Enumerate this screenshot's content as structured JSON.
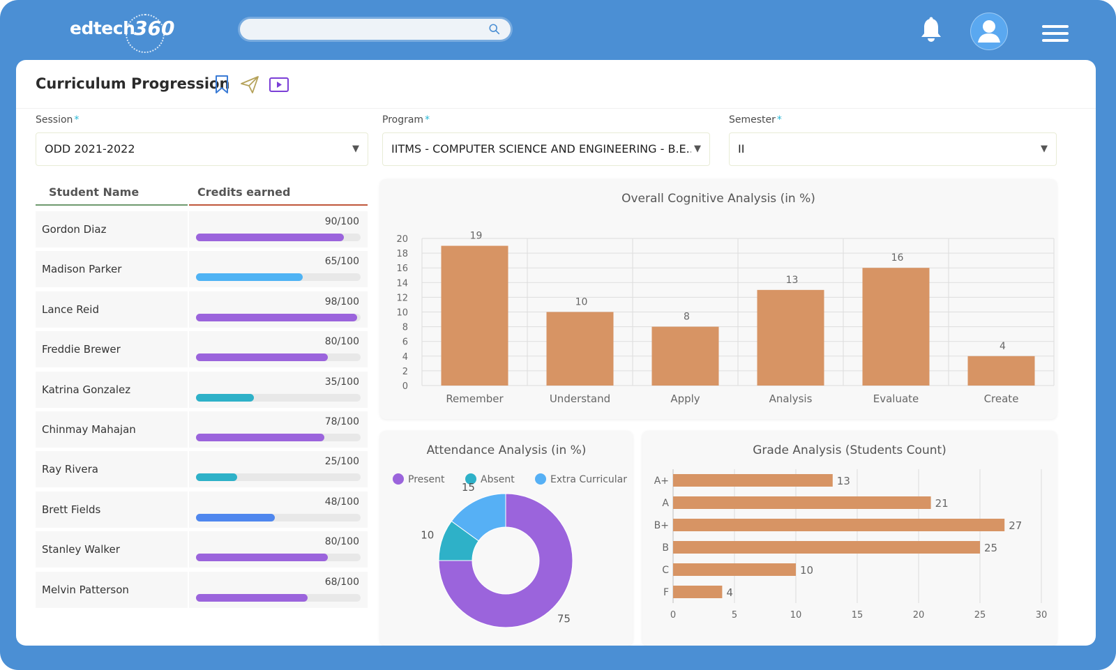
{
  "header": {
    "logo_text": "edtech",
    "logo_number": "360",
    "search": {
      "placeholder": ""
    }
  },
  "page": {
    "title": "Curriculum Progression"
  },
  "filters": {
    "session": {
      "label": "Session",
      "required_mark": "*",
      "value": "ODD 2021-2022"
    },
    "program": {
      "label": "Program",
      "required_mark": "*",
      "value": "IITMS - COMPUTER SCIENCE AND ENGINEERING - B.E....."
    },
    "semester": {
      "label": "Semester",
      "required_mark": "*",
      "value": "II"
    }
  },
  "students": {
    "col_name": "Student Name",
    "col_credits": "Credits earned",
    "rows": [
      {
        "name": "Gordon Diaz",
        "score": "90/100",
        "progress": 0.9,
        "color": "#9b64dc"
      },
      {
        "name": "Madison Parker",
        "score": "65/100",
        "progress": 0.65,
        "color": "#4fb3f4"
      },
      {
        "name": "Lance Reid",
        "score": "98/100",
        "progress": 0.98,
        "color": "#9b64dc"
      },
      {
        "name": "Freddie Brewer",
        "score": "80/100",
        "progress": 0.8,
        "color": "#9b64dc"
      },
      {
        "name": "Katrina Gonzalez",
        "score": "35/100",
        "progress": 0.35,
        "color": "#2eb1c8"
      },
      {
        "name": "Chinmay Mahajan",
        "score": "78/100",
        "progress": 0.78,
        "color": "#9b64dc"
      },
      {
        "name": "Ray Rivera",
        "score": "25/100",
        "progress": 0.25,
        "color": "#2eb1c8"
      },
      {
        "name": "Brett Fields",
        "score": "48/100",
        "progress": 0.48,
        "color": "#4f87ee"
      },
      {
        "name": "Stanley Walker",
        "score": "80/100",
        "progress": 0.8,
        "color": "#9b64dc"
      },
      {
        "name": "Melvin Patterson",
        "score": "68/100",
        "progress": 0.68,
        "color": "#9b64dc"
      }
    ]
  },
  "chart_data": [
    {
      "type": "bar",
      "title": "Overall Cognitive Analysis (in %)",
      "categories": [
        "Remember",
        "Understand",
        "Apply",
        "Analysis",
        "Evaluate",
        "Create"
      ],
      "values": [
        19,
        10,
        8,
        13,
        16,
        4
      ],
      "ylim": [
        0,
        20
      ],
      "yticks": [
        0,
        2,
        4,
        6,
        8,
        10,
        12,
        14,
        16,
        18,
        20
      ],
      "grid": true,
      "color": "#d79464"
    },
    {
      "type": "pie",
      "title": "Attendance Analysis (in %)",
      "labels": [
        "Present",
        "Absent",
        "Extra Curricular"
      ],
      "values": [
        75,
        10,
        15
      ],
      "colors": [
        "#9b64dc",
        "#2eb1c8",
        "#56b0f5"
      ],
      "legend": "top"
    },
    {
      "type": "bar",
      "orientation": "horizontal",
      "title": "Grade Analysis (Students Count)",
      "categories": [
        "A+",
        "A",
        "B+",
        "B",
        "C",
        "F"
      ],
      "values": [
        13,
        21,
        27,
        25,
        10,
        4
      ],
      "xlim": [
        0,
        30
      ],
      "xticks": [
        0,
        5,
        10,
        15,
        20,
        25,
        30
      ],
      "grid": true,
      "color": "#d79464"
    }
  ]
}
